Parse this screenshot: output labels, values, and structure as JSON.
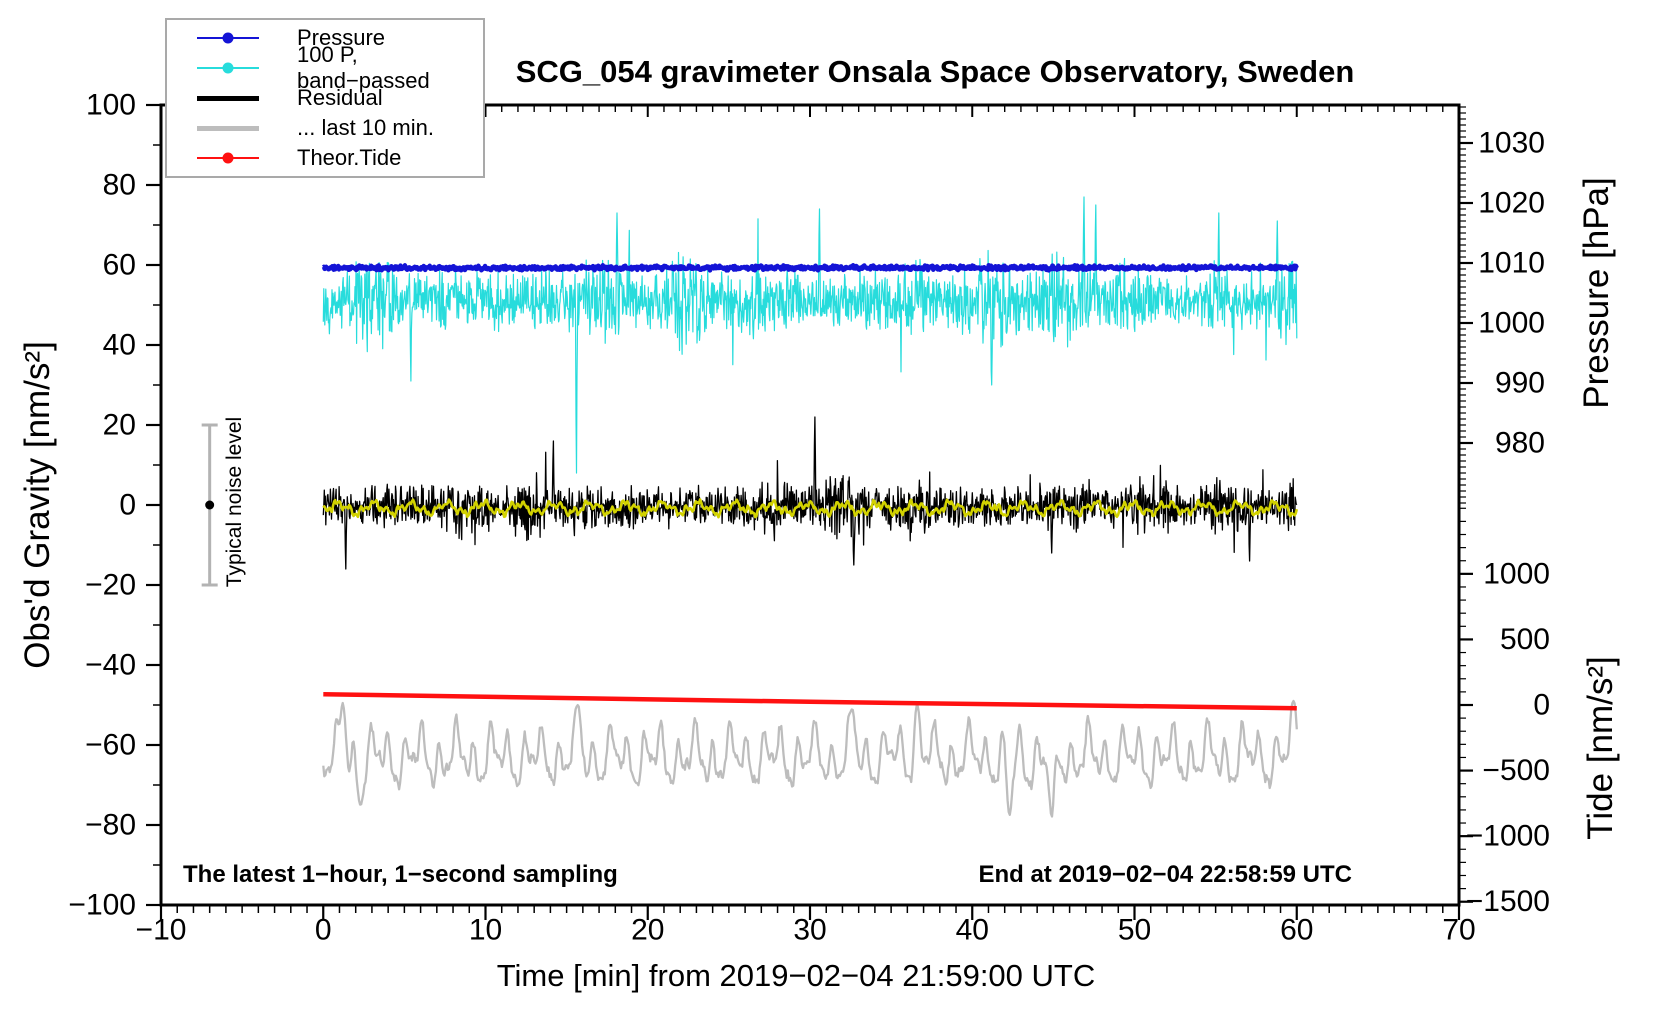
{
  "title": "SCG_054 gravimeter Onsala Space Observatory, Sweden",
  "annotations": {
    "sampling_note": "The latest 1−hour, 1−second sampling",
    "end_note": "End at 2019−02−04 22:58:59 UTC",
    "noise_label": "Typical noise level"
  },
  "legend": {
    "items": [
      {
        "label": "Pressure",
        "color": "#1414d6",
        "line_width": 2.5,
        "dot": true
      },
      {
        "label": "100 P, band−passed",
        "color": "#27dcdc",
        "line_width": 2.0,
        "dot": true
      },
      {
        "label": "Residual",
        "color": "#000000",
        "line_width": 5.0,
        "dot": false
      },
      {
        "label": "... last 10 min.",
        "color": "#bdbdbd",
        "line_width": 5.0,
        "dot": false
      },
      {
        "label": "Theor.Tide",
        "color": "#ff1111",
        "line_width": 2.0,
        "dot": true
      }
    ]
  },
  "chart_data": {
    "type": "line",
    "title": "SCG_054 gravimeter Onsala Space Observatory, Sweden",
    "x_axis": {
      "title": "Time [min] from 2019−02−04 21:59:00 UTC",
      "range": [
        -10,
        70
      ],
      "major_ticks": [
        -10,
        0,
        10,
        20,
        30,
        40,
        50,
        60,
        70
      ],
      "minor_step": 1,
      "data_t_range": [
        0,
        60
      ]
    },
    "left_axis": {
      "title": "Obs'd Gravity [nm/s²]",
      "range": [
        -100,
        100
      ],
      "major_ticks": [
        -100,
        -80,
        -60,
        -40,
        -20,
        0,
        20,
        40,
        60,
        80,
        100
      ],
      "minor_step": 10
    },
    "pressure_axis": {
      "title": "Pressure [hPa]",
      "major_ticks": [
        980,
        990,
        1000,
        1010,
        1020,
        1030
      ],
      "minor_step": 1,
      "minor_range": [
        970,
        1036
      ],
      "anchor_hPa": 1010,
      "anchor_gravity": 60.5,
      "gravity_per_hPa": 1.5
    },
    "tide_axis": {
      "title": "Tide [nm/s²]",
      "major_ticks": [
        -1500,
        -1000,
        -500,
        0,
        500,
        1000
      ],
      "minor_step": 100,
      "minor_range": [
        -1500,
        1500
      ],
      "anchor_tide": 0,
      "anchor_gravity": -50,
      "tide_units_per_gravity": 30.5
    },
    "noise_bar": {
      "t": -7,
      "center_gravity": 0,
      "half_width_gravity": 20,
      "color": "#b3b3b3"
    },
    "series": [
      {
        "name": "100 P, band-passed",
        "color": "#27dcdc",
        "width": 1.2,
        "zorder": 1,
        "mean_gravity": 51,
        "typical_range_gravity": [
          36,
          66
        ],
        "synth": {
          "kind": "dense",
          "points": 1900,
          "seed": 22,
          "mean": 51,
          "base_amp": 5.0,
          "amp_var": 4.5,
          "tail_p": 0.03,
          "tail_mult": 2.0,
          "spikes": [
            {
              "t": 5.4,
              "g": 31
            },
            {
              "t": 15.6,
              "g": 8
            },
            {
              "t": 18.1,
              "g": 73
            },
            {
              "t": 30.6,
              "g": 74
            },
            {
              "t": 41.2,
              "g": 30
            },
            {
              "t": 46.9,
              "g": 77
            },
            {
              "t": 47.6,
              "g": 75
            },
            {
              "t": 55.2,
              "g": 73
            },
            {
              "t": 58.8,
              "g": 71
            }
          ]
        }
      },
      {
        "name": "Pressure",
        "color": "#1414d6",
        "width": 4.5,
        "zorder": 2,
        "mean_hPa": 1009.2,
        "mean_gravity": 59.3,
        "synth": {
          "kind": "flat",
          "points": 1300,
          "seed": 11,
          "mean": 59.3,
          "sigma": 0.45
        }
      },
      {
        "name": "Residual",
        "color": "#000000",
        "width": 1.3,
        "zorder": 3,
        "mean_gravity": -0.5,
        "typical_range_gravity": [
          -10,
          10
        ],
        "extremes_gravity": [
          -17,
          22
        ],
        "synth": {
          "kind": "dense",
          "points": 1900,
          "seed": 33,
          "mean": -0.5,
          "base_amp": 3.5,
          "amp_var": 2.5,
          "tail_p": 0.04,
          "tail_mult": 1.9,
          "spikes": [
            {
              "t": 1.4,
              "g": -16
            },
            {
              "t": 14.2,
              "g": 16
            },
            {
              "t": 30.3,
              "g": 22
            },
            {
              "t": 32.7,
              "g": -15
            },
            {
              "t": 44.9,
              "g": -12
            },
            {
              "t": 57.1,
              "g": -14
            }
          ]
        }
      },
      {
        "name": "Residual smoothed",
        "color": "#d2d200",
        "width": 2.6,
        "zorder": 4,
        "mean_gravity": -0.8,
        "synth": {
          "kind": "smooth",
          "points": 900,
          "seed": 44,
          "mean": -0.8,
          "amps": [
            1.1,
            0.7,
            0.5
          ],
          "freqs": [
            0.45,
            1.3,
            3.1
          ],
          "jitter": 0.35,
          "spikes": []
        }
      },
      {
        "name": "... last 10 min.",
        "color": "#bdbdbd",
        "width": 2.3,
        "zorder": 5,
        "mean_gravity": -63,
        "typical_range_gravity": [
          -73,
          -53
        ],
        "synth": {
          "kind": "smooth",
          "points": 900,
          "seed": 55,
          "mean": -63,
          "amps": [
            4.5,
            3.2,
            2.0
          ],
          "freqs": [
            0.95,
            0.41,
            1.9
          ],
          "jitter": 1.1,
          "spikes": [
            {
              "t": 1.2,
              "g": -49.5
            },
            {
              "t": 2.3,
              "g": -75
            },
            {
              "t": 15.7,
              "g": -50
            },
            {
              "t": 32.6,
              "g": -51
            },
            {
              "t": 36.6,
              "g": -50
            },
            {
              "t": 42.3,
              "g": -77.5
            },
            {
              "t": 44.9,
              "g": -78
            },
            {
              "t": 59.8,
              "g": -49
            }
          ]
        }
      },
      {
        "name": "Theor.Tide",
        "color": "#ff1111",
        "width": 4.5,
        "zorder": 6,
        "tide_start": 82,
        "tide_end": -23,
        "synth": {
          "kind": "line",
          "pts": [
            {
              "t": 0,
              "g": -47.3
            },
            {
              "t": 30,
              "g": -49.2
            },
            {
              "t": 60,
              "g": -50.8
            }
          ]
        }
      }
    ]
  }
}
